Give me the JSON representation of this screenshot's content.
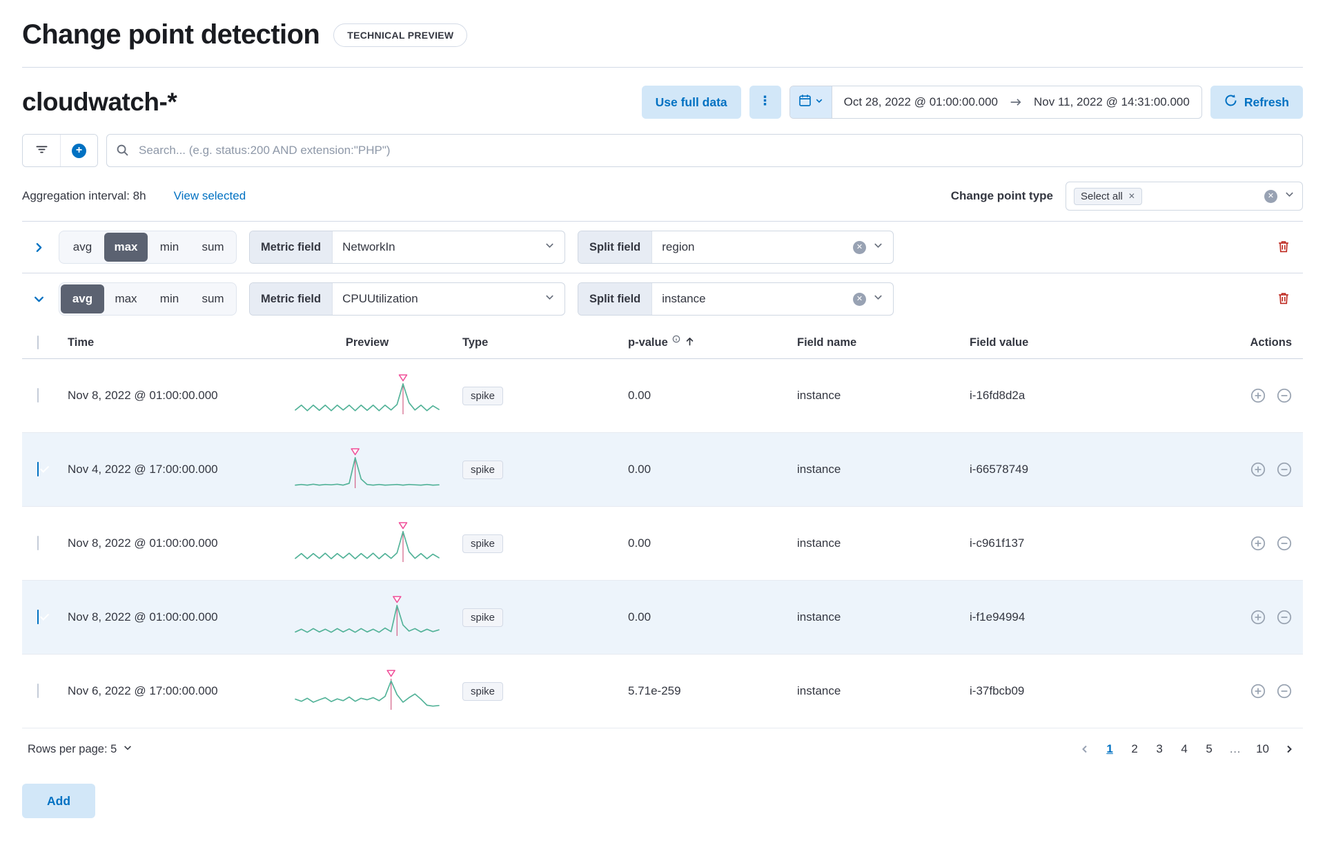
{
  "page": {
    "title": "Change point detection",
    "badge": "TECHNICAL PREVIEW"
  },
  "header": {
    "index_pattern": "cloudwatch-*",
    "use_full_data_label": "Use full data",
    "date_range": {
      "start": "Oct 28, 2022 @ 01:00:00.000",
      "end": "Nov 11, 2022 @ 14:31:00.000"
    },
    "refresh_label": "Refresh"
  },
  "search": {
    "placeholder": "Search... (e.g. status:200 AND extension:\"PHP\")"
  },
  "filters": {
    "aggregation_interval": "Aggregation interval: 8h",
    "view_selected_label": "View selected",
    "change_point_type_label": "Change point type",
    "change_point_type_value": "Select all"
  },
  "configs": [
    {
      "agg_functions": [
        "avg",
        "max",
        "min",
        "sum"
      ],
      "selected_function": "max",
      "metric_field_label": "Metric field",
      "metric_field_value": "NetworkIn",
      "split_field_label": "Split field",
      "split_field_value": "region",
      "expanded": false
    },
    {
      "agg_functions": [
        "avg",
        "max",
        "min",
        "sum"
      ],
      "selected_function": "avg",
      "metric_field_label": "Metric field",
      "metric_field_value": "CPUUtilization",
      "split_field_label": "Split field",
      "split_field_value": "instance",
      "expanded": true
    }
  ],
  "table": {
    "headers": {
      "time": "Time",
      "preview": "Preview",
      "type": "Type",
      "p_value": "p-value",
      "field_name": "Field name",
      "field_value": "Field value",
      "actions": "Actions"
    },
    "rows": [
      {
        "checked": false,
        "time": "Nov 8, 2022 @ 01:00:00.000",
        "type": "spike",
        "p_value": "0.00",
        "field_name": "instance",
        "field_value": "i-16fd8d2a"
      },
      {
        "checked": true,
        "time": "Nov 4, 2022 @ 17:00:00.000",
        "type": "spike",
        "p_value": "0.00",
        "field_name": "instance",
        "field_value": "i-66578749"
      },
      {
        "checked": false,
        "time": "Nov 8, 2022 @ 01:00:00.000",
        "type": "spike",
        "p_value": "0.00",
        "field_name": "instance",
        "field_value": "i-c961f137"
      },
      {
        "checked": true,
        "time": "Nov 8, 2022 @ 01:00:00.000",
        "type": "spike",
        "p_value": "0.00",
        "field_name": "instance",
        "field_value": "i-f1e94994"
      },
      {
        "checked": false,
        "time": "Nov 6, 2022 @ 17:00:00.000",
        "type": "spike",
        "p_value": "5.71e-259",
        "field_name": "instance",
        "field_value": "i-37fbcb09"
      }
    ],
    "rows_per_page_label": "Rows per page: 5",
    "pagination": {
      "pages": [
        "1",
        "2",
        "3",
        "4",
        "5",
        "…",
        "10"
      ],
      "current": "1"
    }
  },
  "footer": {
    "add_label": "Add"
  },
  "colors": {
    "primary": "#0071c2",
    "danger": "#bd271e",
    "selected_row": "#edf4fb"
  },
  "chart_data": [
    {
      "type": "line",
      "name": "preview-row-1",
      "spike_index": 18,
      "line_color": "#54b399",
      "spike_line_color": "#d36086",
      "marker_color": "#f04e98",
      "values": [
        0.14,
        0.3,
        0.12,
        0.3,
        0.13,
        0.3,
        0.12,
        0.3,
        0.14,
        0.3,
        0.12,
        0.3,
        0.13,
        0.3,
        0.12,
        0.3,
        0.14,
        0.32,
        1.0,
        0.38,
        0.14,
        0.3,
        0.12,
        0.28,
        0.16
      ]
    },
    {
      "type": "line",
      "name": "preview-row-2",
      "spike_index": 10,
      "line_color": "#54b399",
      "spike_line_color": "#d36086",
      "marker_color": "#f04e98",
      "values": [
        0.1,
        0.12,
        0.1,
        0.13,
        0.1,
        0.12,
        0.11,
        0.13,
        0.1,
        0.16,
        1.0,
        0.3,
        0.12,
        0.1,
        0.12,
        0.1,
        0.11,
        0.12,
        0.1,
        0.12,
        0.11,
        0.1,
        0.12,
        0.1,
        0.11
      ]
    },
    {
      "type": "line",
      "name": "preview-row-3",
      "spike_index": 18,
      "line_color": "#54b399",
      "spike_line_color": "#d36086",
      "marker_color": "#f04e98",
      "values": [
        0.12,
        0.28,
        0.11,
        0.28,
        0.12,
        0.29,
        0.11,
        0.28,
        0.13,
        0.29,
        0.11,
        0.28,
        0.12,
        0.29,
        0.11,
        0.28,
        0.12,
        0.3,
        1.0,
        0.34,
        0.12,
        0.28,
        0.11,
        0.26,
        0.14
      ]
    },
    {
      "type": "line",
      "name": "preview-row-4",
      "spike_index": 17,
      "line_color": "#54b399",
      "spike_line_color": "#d36086",
      "marker_color": "#f04e98",
      "values": [
        0.13,
        0.22,
        0.12,
        0.24,
        0.13,
        0.22,
        0.12,
        0.24,
        0.13,
        0.23,
        0.12,
        0.24,
        0.13,
        0.22,
        0.12,
        0.26,
        0.14,
        1.0,
        0.36,
        0.16,
        0.24,
        0.13,
        0.22,
        0.14,
        0.2
      ]
    },
    {
      "type": "line",
      "name": "preview-row-5",
      "spike_index": 16,
      "line_color": "#54b399",
      "spike_line_color": "#d36086",
      "marker_color": "#f04e98",
      "values": [
        0.35,
        0.28,
        0.38,
        0.25,
        0.33,
        0.4,
        0.27,
        0.36,
        0.3,
        0.42,
        0.28,
        0.38,
        0.33,
        0.4,
        0.3,
        0.44,
        0.95,
        0.5,
        0.25,
        0.4,
        0.52,
        0.35,
        0.15,
        0.12,
        0.14
      ]
    }
  ]
}
